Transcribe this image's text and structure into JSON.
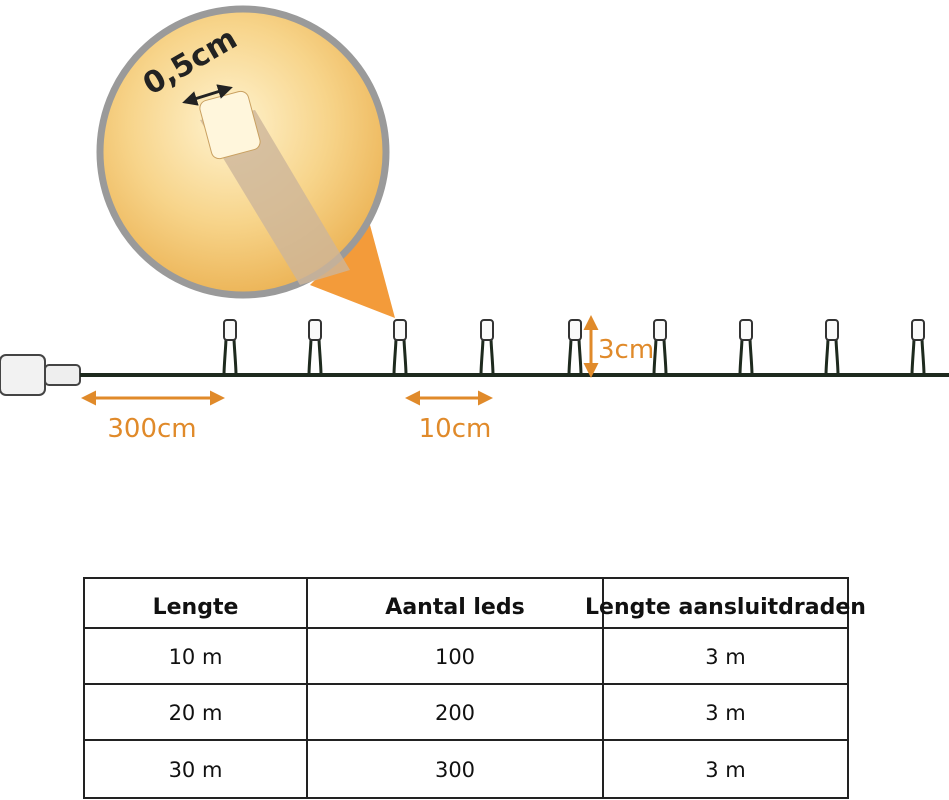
{
  "diagram": {
    "labels": {
      "led_size": "0,5cm",
      "led_height": "3cm",
      "lead_length": "300cm",
      "spacing": "10cm"
    }
  },
  "table": {
    "header": [
      "Lengte",
      "Aantal leds",
      "Lengte aansluitdraden"
    ],
    "rows": [
      [
        "10 m",
        "100",
        "3 m"
      ],
      [
        "20 m",
        "200",
        "3 m"
      ],
      [
        "30 m",
        "300",
        "3 m"
      ]
    ]
  }
}
